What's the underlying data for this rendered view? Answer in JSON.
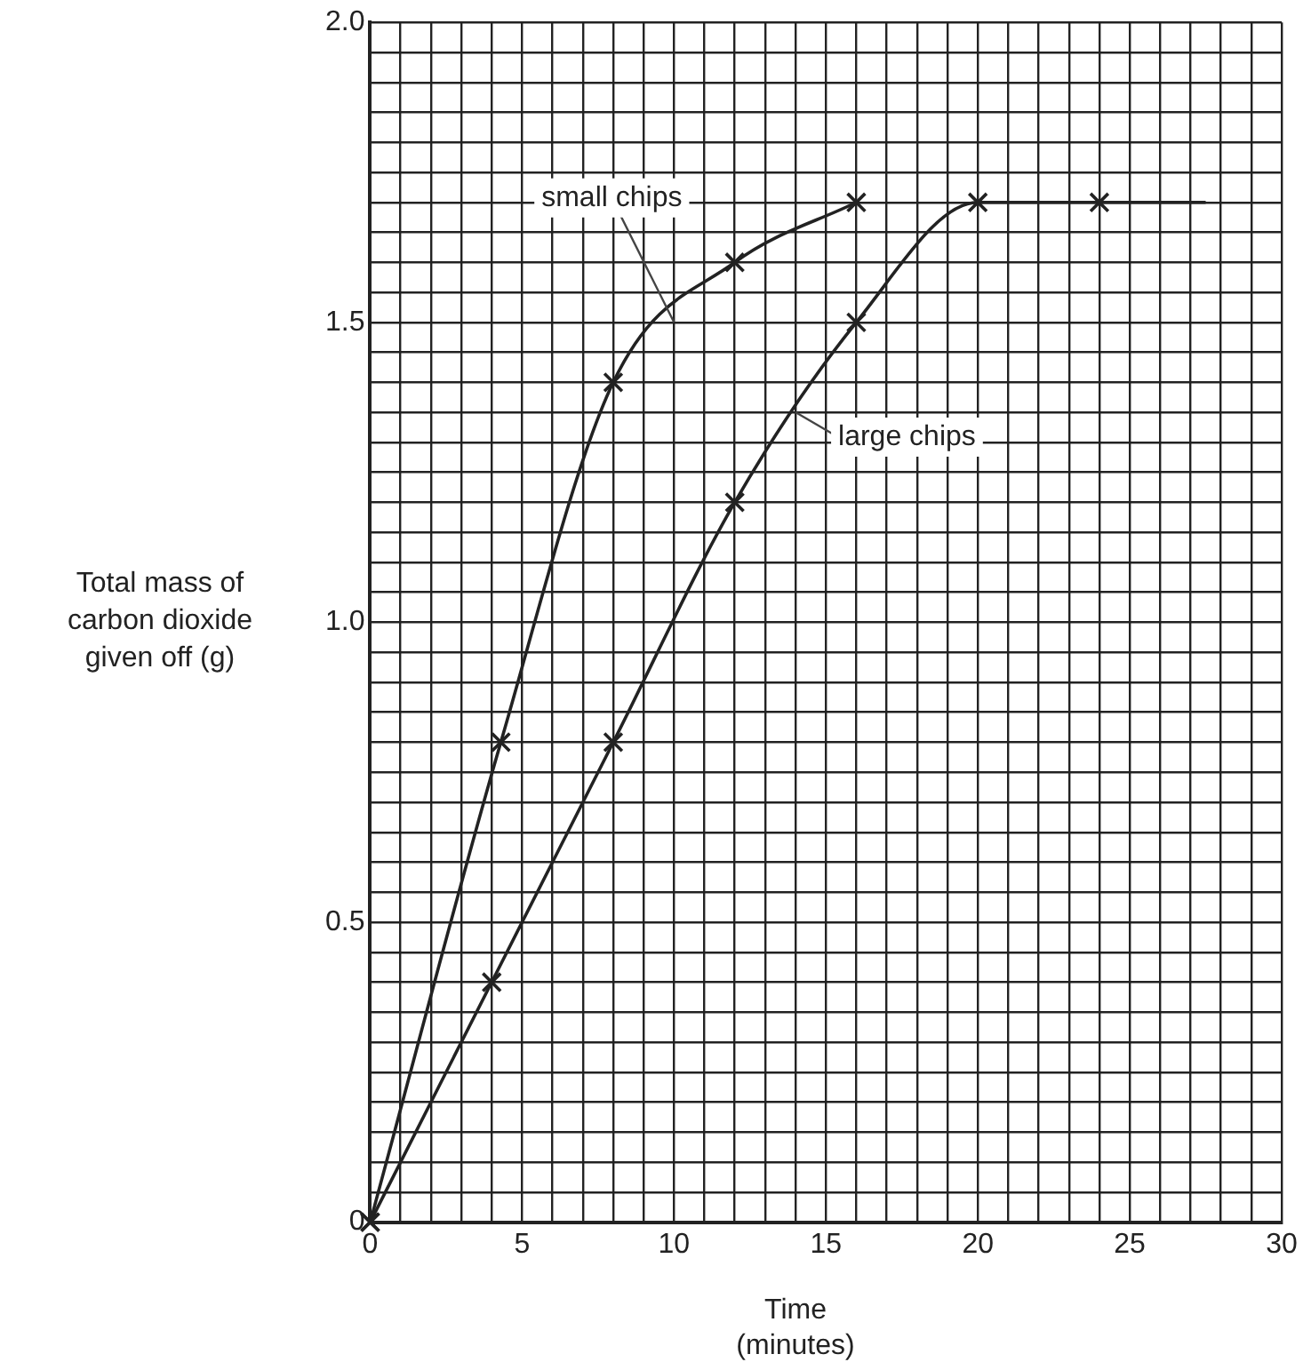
{
  "chart_data": {
    "type": "line",
    "xlabel": "Time (minutes)",
    "ylabel": "Total mass of carbon dioxide given off (g)",
    "xlim": [
      0,
      30
    ],
    "ylim": [
      0,
      2.0
    ],
    "xticks": [
      0,
      {
        "value": 1,
        "label": null
      },
      {
        "value": 2,
        "label": null
      },
      {
        "value": 3,
        "label": null
      },
      {
        "value": 4,
        "label": null
      },
      5,
      {
        "value": 6,
        "label": null
      },
      {
        "value": 7,
        "label": null
      },
      {
        "value": 8,
        "label": null
      },
      {
        "value": 9,
        "label": null
      },
      10,
      {
        "value": 11,
        "label": null
      },
      {
        "value": 12,
        "label": null
      },
      {
        "value": 13,
        "label": null
      },
      {
        "value": 14,
        "label": null
      },
      15,
      {
        "value": 16,
        "label": null
      },
      {
        "value": 17,
        "label": null
      },
      {
        "value": 18,
        "label": null
      },
      {
        "value": 19,
        "label": null
      },
      20,
      {
        "value": 21,
        "label": null
      },
      {
        "value": 22,
        "label": null
      },
      {
        "value": 23,
        "label": null
      },
      {
        "value": 24,
        "label": null
      },
      25,
      {
        "value": 26,
        "label": null
      },
      {
        "value": 27,
        "label": null
      },
      {
        "value": 28,
        "label": null
      },
      {
        "value": 29,
        "label": null
      },
      30
    ],
    "yticks": [
      0,
      {
        "value": 0.05,
        "label": null
      },
      {
        "value": 0.1,
        "label": null
      },
      {
        "value": 0.15,
        "label": null
      },
      {
        "value": 0.2,
        "label": null
      },
      {
        "value": 0.25,
        "label": null
      },
      {
        "value": 0.3,
        "label": null
      },
      {
        "value": 0.35,
        "label": null
      },
      {
        "value": 0.4,
        "label": null
      },
      {
        "value": 0.45,
        "label": null
      },
      0.5,
      {
        "value": 0.55,
        "label": null
      },
      {
        "value": 0.6,
        "label": null
      },
      {
        "value": 0.65,
        "label": null
      },
      {
        "value": 0.7,
        "label": null
      },
      {
        "value": 0.75,
        "label": null
      },
      {
        "value": 0.8,
        "label": null
      },
      {
        "value": 0.85,
        "label": null
      },
      {
        "value": 0.9,
        "label": null
      },
      {
        "value": 0.95,
        "label": null
      },
      {
        "value": 1,
        "label": "1.0"
      },
      {
        "value": 1.05,
        "label": null
      },
      {
        "value": 1.1,
        "label": null
      },
      {
        "value": 1.15,
        "label": null
      },
      {
        "value": 1.2,
        "label": null
      },
      {
        "value": 1.25,
        "label": null
      },
      {
        "value": 1.3,
        "label": null
      },
      {
        "value": 1.35,
        "label": null
      },
      {
        "value": 1.4,
        "label": null
      },
      {
        "value": 1.45,
        "label": null
      },
      1.5,
      {
        "value": 1.55,
        "label": null
      },
      {
        "value": 1.6,
        "label": null
      },
      {
        "value": 1.65,
        "label": null
      },
      {
        "value": 1.7,
        "label": null
      },
      {
        "value": 1.75,
        "label": null
      },
      {
        "value": 1.8,
        "label": null
      },
      {
        "value": 1.85,
        "label": null
      },
      {
        "value": 1.9,
        "label": null
      },
      {
        "value": 1.95,
        "label": null
      },
      {
        "value": 2,
        "label": "2.0"
      }
    ],
    "grid": true,
    "legend": false,
    "marker": "cross",
    "line_style": "solid",
    "series": [
      {
        "name": "small chips",
        "color": "#222222",
        "x": [
          0,
          4.3,
          8,
          12,
          16
        ],
        "values": [
          0,
          0.8,
          1.4,
          1.6,
          1.7
        ]
      },
      {
        "name": "large chips",
        "color": "#222222",
        "x": [
          0,
          4,
          8,
          12,
          16,
          20,
          24
        ],
        "values": [
          0,
          0.4,
          0.8,
          1.2,
          1.5,
          1.7,
          1.7
        ]
      },
      {
        "color": "#222222",
        "marker": "none",
        "x": [
          24,
          27.5
        ],
        "values": [
          1.7,
          1.7
        ]
      }
    ]
  }
}
